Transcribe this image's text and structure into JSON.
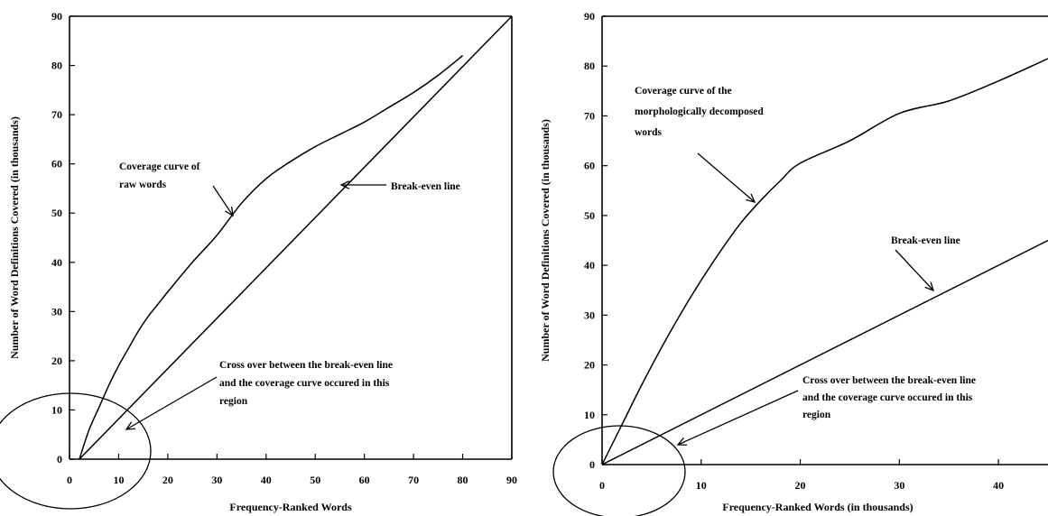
{
  "chart_data": [
    {
      "type": "line",
      "xlabel": "Frequency-Ranked Words",
      "ylabel": "Number of Word Definitions Covered (in thousands)",
      "xlim": [
        0,
        90
      ],
      "ylim": [
        0,
        90
      ],
      "xticks": [
        "0",
        "10",
        "20",
        "30",
        "40",
        "50",
        "60",
        "70",
        "80",
        "90"
      ],
      "yticks": [
        "0",
        "10",
        "20",
        "30",
        "40",
        "50",
        "60",
        "70",
        "80",
        "90"
      ],
      "grid": false,
      "legend": "none",
      "series": [
        {
          "id": "coverage",
          "x": [
            2,
            4,
            6,
            8,
            10,
            12,
            14,
            16,
            18,
            20,
            25,
            30,
            35,
            40,
            45,
            50,
            55,
            60,
            65,
            70,
            75,
            80
          ],
          "y": [
            0,
            6,
            10.5,
            15,
            19,
            22.5,
            26,
            29,
            31.5,
            34,
            40,
            45.5,
            52,
            57,
            60.5,
            63.5,
            66,
            68.5,
            71.5,
            74.5,
            78,
            82
          ]
        },
        {
          "id": "break-even",
          "x": [
            2,
            90
          ],
          "y": [
            0,
            90
          ]
        }
      ],
      "annotations": [
        {
          "id": "coverage",
          "lines": [
            "Coverage curve of",
            "raw words"
          ]
        },
        {
          "id": "breakeven",
          "lines": [
            "Break-even line"
          ]
        },
        {
          "id": "crossover",
          "lines": [
            "Cross over between the break-even line",
            "and the coverage curve occured in this",
            "region"
          ]
        }
      ]
    },
    {
      "type": "line",
      "xlabel": "Frequency-Ranked Words (in thousands)",
      "ylabel": "Number of Word Definitions Covered (in thousands)",
      "xlim": [
        0,
        45
      ],
      "ylim": [
        0,
        90
      ],
      "xticks": [
        "0",
        "10",
        "20",
        "30",
        "40"
      ],
      "yticks": [
        "0",
        "10",
        "20",
        "30",
        "40",
        "50",
        "60",
        "70",
        "80",
        "90"
      ],
      "grid": false,
      "legend": "none",
      "series": [
        {
          "id": "coverage",
          "x": [
            0,
            2,
            4,
            6,
            8,
            10,
            12,
            14,
            16,
            18,
            20,
            25,
            30,
            35,
            40,
            45
          ],
          "y": [
            0,
            8,
            16,
            23.5,
            30.5,
            37,
            43,
            48.5,
            53,
            57,
            60.5,
            65,
            70.5,
            73,
            77,
            81.5
          ]
        },
        {
          "id": "break-even",
          "x": [
            0,
            45
          ],
          "y": [
            0,
            45
          ]
        }
      ],
      "annotations": [
        {
          "id": "coverage",
          "lines": [
            "Coverage curve of the",
            "morphologically decomposed",
            "words"
          ]
        },
        {
          "id": "breakeven",
          "lines": [
            "Break-even line"
          ]
        },
        {
          "id": "crossover",
          "lines": [
            "Cross over between the break-even line",
            "and the coverage curve occured in this",
            "region"
          ]
        }
      ]
    }
  ]
}
